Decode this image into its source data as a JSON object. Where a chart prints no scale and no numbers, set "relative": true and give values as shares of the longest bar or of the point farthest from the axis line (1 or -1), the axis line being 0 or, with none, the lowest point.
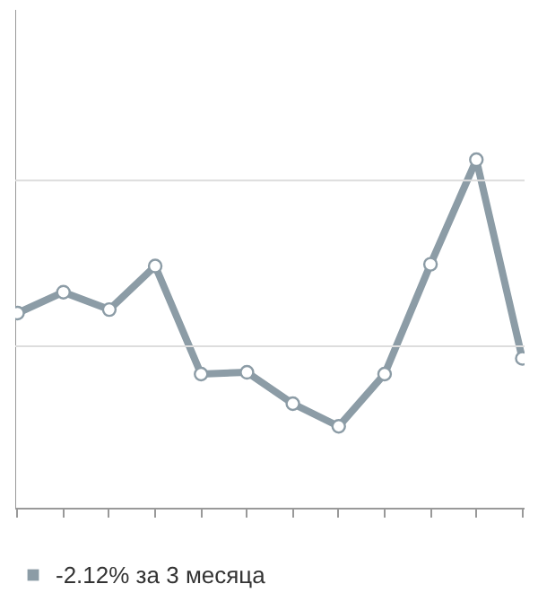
{
  "chart_data": {
    "type": "line",
    "relative": true,
    "categories": [
      null,
      null,
      null,
      null,
      null,
      null,
      null,
      null,
      null,
      null,
      null,
      null
    ],
    "series": [
      {
        "name": "-2.12% за 3 месяца",
        "color": "#8c9ca6",
        "values": [
          0.56,
          0.62,
          0.57,
          0.695,
          0.385,
          0.39,
          0.3,
          0.235,
          0.385,
          0.7,
          1,
          0.43
        ]
      }
    ],
    "ref_lines": [
      {
        "axis": "y",
        "value": 0.465,
        "color": "#dddddd"
      },
      {
        "axis": "y",
        "value": 0.94,
        "color": "#dddddd"
      }
    ],
    "marker": "circle",
    "legend": "bottom"
  }
}
